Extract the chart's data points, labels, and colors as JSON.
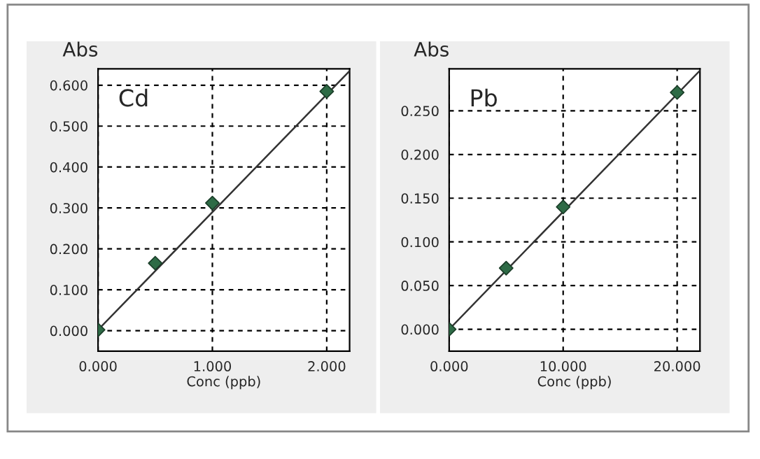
{
  "chart_data": [
    {
      "type": "scatter",
      "title": "Cd",
      "xlabel": "Conc (ppb)",
      "ylabel": "Abs",
      "grid": true,
      "legend": false,
      "xlim": [
        0,
        2.2
      ],
      "xticks": [
        {
          "value": 0,
          "label": "0.000"
        },
        {
          "value": 1,
          "label": "1.000"
        },
        {
          "value": 2,
          "label": "2.000"
        }
      ],
      "ylim": [
        -0.05,
        0.64
      ],
      "yticks": [
        {
          "value": 0,
          "label": "0.000"
        },
        {
          "value": 0.1,
          "label": "0.100"
        },
        {
          "value": 0.2,
          "label": "0.200"
        },
        {
          "value": 0.3,
          "label": "0.300"
        },
        {
          "value": 0.4,
          "label": "0.400"
        },
        {
          "value": 0.5,
          "label": "0.500"
        },
        {
          "value": 0.6,
          "label": "0.600"
        }
      ],
      "series": [
        {
          "color": "#2e6b46",
          "marker": "diamond",
          "x": [
            0,
            0.5,
            1,
            2
          ],
          "values": [
            0.002,
            0.165,
            0.312,
            0.585
          ]
        },
        {
          "type": "line",
          "marker": "none",
          "color": "#333333",
          "x": [
            0,
            2.2
          ],
          "values": [
            0.002,
            0.635
          ]
        }
      ]
    },
    {
      "type": "scatter",
      "title": "Pb",
      "xlabel": "Conc (ppb)",
      "ylabel": "Abs",
      "grid": true,
      "legend": false,
      "xlim": [
        0,
        22
      ],
      "xticks": [
        {
          "value": 0,
          "label": "0.000"
        },
        {
          "value": 10,
          "label": "10.000"
        },
        {
          "value": 20,
          "label": "20.000"
        }
      ],
      "ylim": [
        -0.025,
        0.298
      ],
      "yticks": [
        {
          "value": 0,
          "label": "0.000"
        },
        {
          "value": 0.05,
          "label": "0.050"
        },
        {
          "value": 0.1,
          "label": "0.100"
        },
        {
          "value": 0.15,
          "label": "0.150"
        },
        {
          "value": 0.2,
          "label": "0.200"
        },
        {
          "value": 0.25,
          "label": "0.250"
        }
      ],
      "series": [
        {
          "color": "#2e6b46",
          "marker": "diamond",
          "x": [
            0,
            5,
            10,
            20
          ],
          "values": [
            0.0,
            0.07,
            0.14,
            0.271
          ]
        },
        {
          "type": "line",
          "marker": "none",
          "color": "#333333",
          "x": [
            0,
            22
          ],
          "values": [
            0.0,
            0.296
          ]
        }
      ]
    }
  ]
}
